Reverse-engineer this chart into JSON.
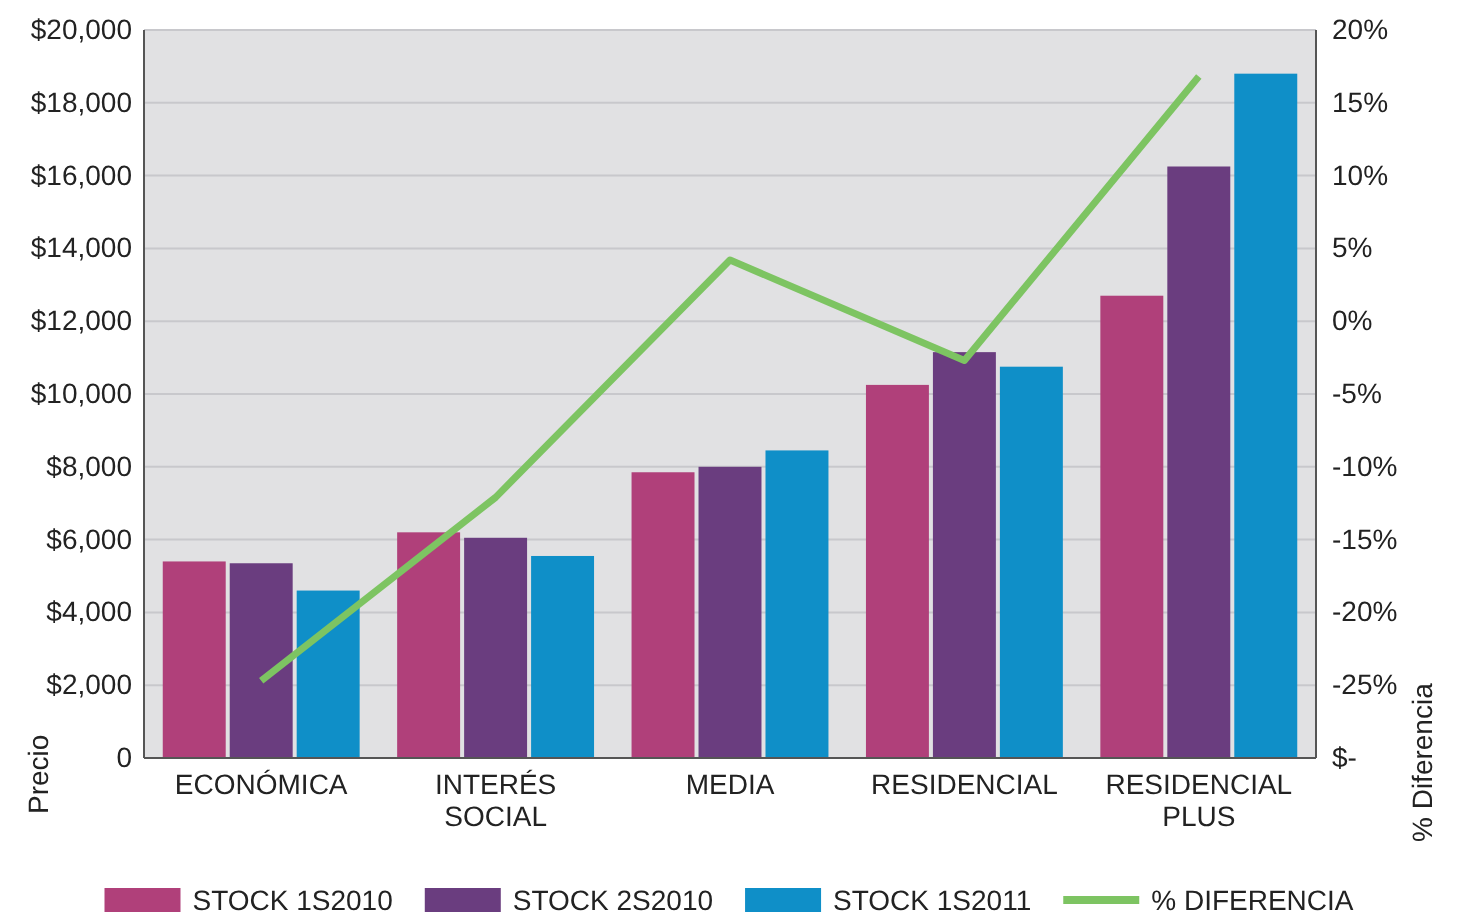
{
  "chart_data": {
    "type": "bar",
    "categories": [
      "ECONÓMICA",
      "INTERÉS SOCIAL",
      "MEDIA",
      "RESIDENCIAL",
      "RESIDENCIAL PLUS"
    ],
    "ylabel": "Precio",
    "y2label": "% Diferencia",
    "series": [
      {
        "name": "STOCK 1S2010",
        "color": "#b0407a",
        "values": [
          5400,
          6200,
          7850,
          10250,
          12700
        ]
      },
      {
        "name": "STOCK 2S2010",
        "color": "#6a3d7f",
        "values": [
          5350,
          6050,
          8000,
          11150,
          16250
        ]
      },
      {
        "name": "STOCK 1S2011",
        "color": "#0f8fc8",
        "values": [
          4600,
          5550,
          8450,
          10750,
          18800
        ]
      },
      {
        "name": "% DIFERENCIA",
        "type": "line",
        "axis": "y2",
        "color": "#7dc462",
        "values": [
          -24.7,
          -12.1,
          4.2,
          -2.7,
          16.8
        ]
      }
    ],
    "ylim": [
      0,
      20000
    ],
    "yticks": [
      {
        "value": 0,
        "label": "0"
      },
      {
        "value": 2000,
        "label": "$2,000"
      },
      {
        "value": 4000,
        "label": "$4,000"
      },
      {
        "value": 6000,
        "label": "$6,000"
      },
      {
        "value": 8000,
        "label": "$8,000"
      },
      {
        "value": 10000,
        "label": "$10,000"
      },
      {
        "value": 12000,
        "label": "$12,000"
      },
      {
        "value": 14000,
        "label": "$14,000"
      },
      {
        "value": 16000,
        "label": "$16,000"
      },
      {
        "value": 18000,
        "label": "$18,000"
      },
      {
        "value": 20000,
        "label": "$20,000"
      }
    ],
    "y2lim": [
      -30,
      20
    ],
    "y2ticks": [
      {
        "value": -30,
        "label": "$-"
      },
      {
        "value": -25,
        "label": "-25%"
      },
      {
        "value": -20,
        "label": "-20%"
      },
      {
        "value": -15,
        "label": "-15%"
      },
      {
        "value": -10,
        "label": "-10%"
      },
      {
        "value": -5,
        "label": "-5%"
      },
      {
        "value": 0,
        "label": "0%"
      },
      {
        "value": 5,
        "label": "5%"
      },
      {
        "value": 10,
        "label": "10%"
      },
      {
        "value": 15,
        "label": "15%"
      },
      {
        "value": 20,
        "label": "20%"
      }
    ],
    "grid": "y",
    "legend": "bottom",
    "marker": "none",
    "line_style": "solid"
  }
}
